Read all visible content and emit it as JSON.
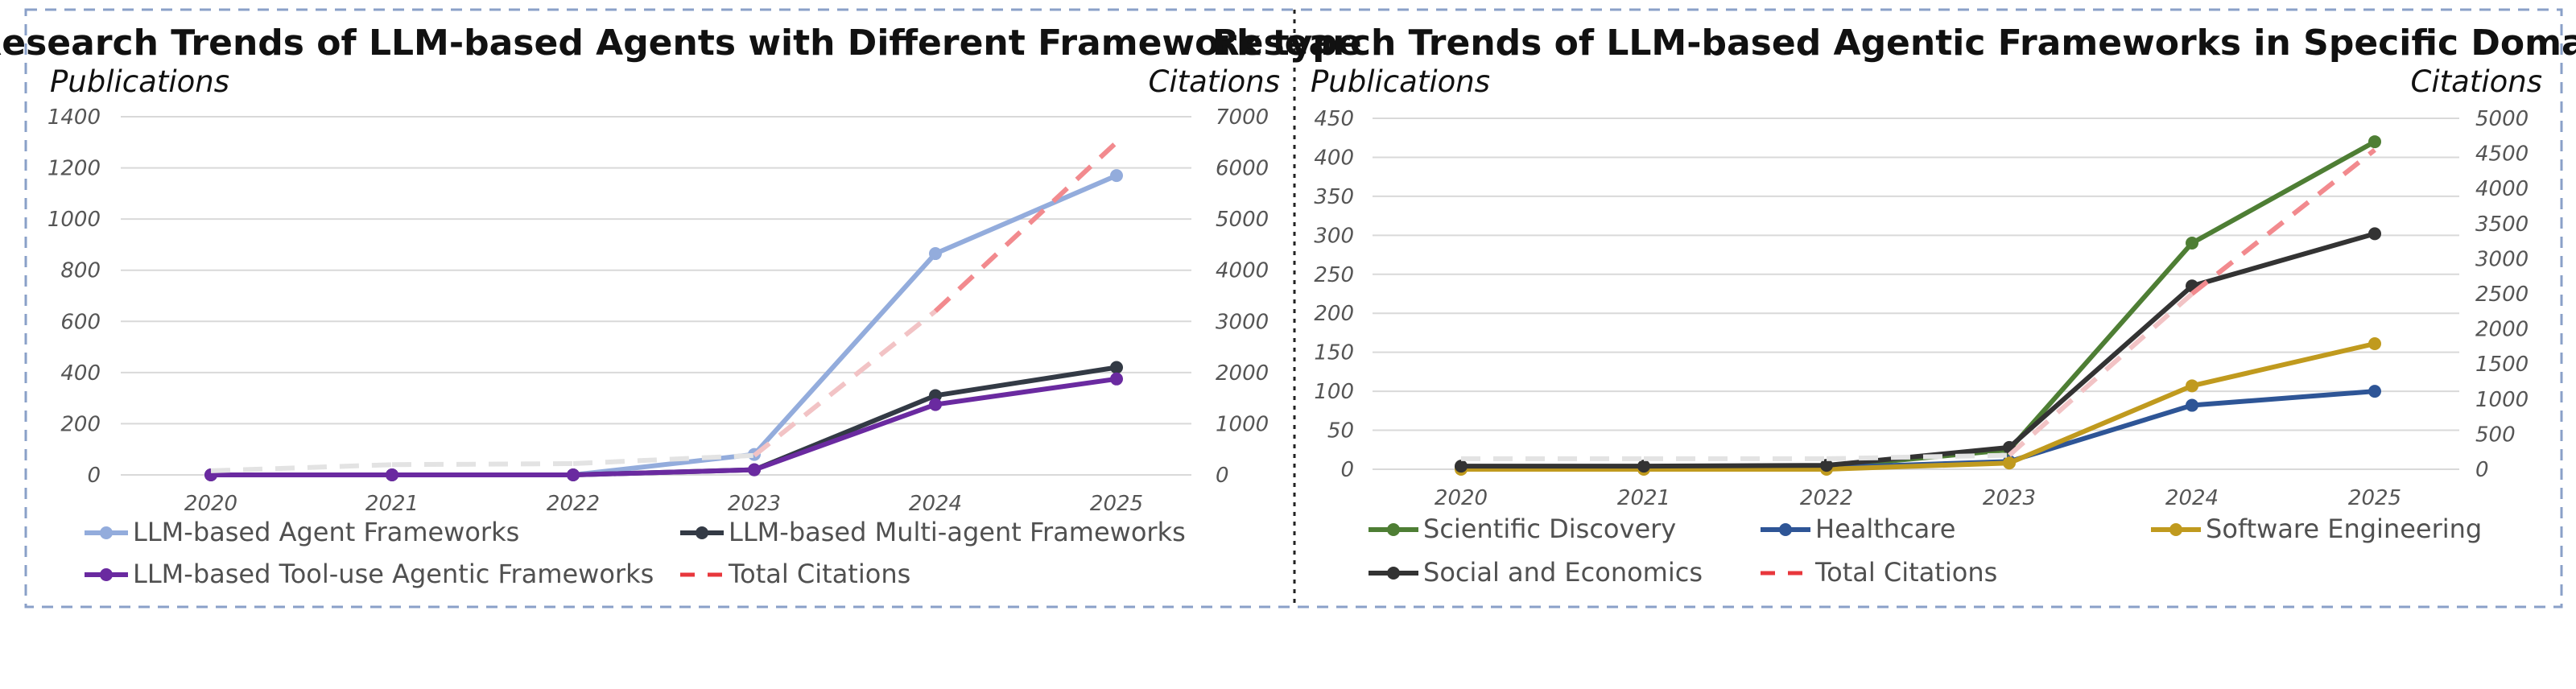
{
  "chart_data": [
    {
      "type": "line",
      "title": "Research Trends of LLM-based Agents with Different Framework type",
      "ylabel": "Publications",
      "y2label": "Citations",
      "categories": [
        "2020",
        "2021",
        "2022",
        "2023",
        "2024",
        "2025"
      ],
      "ylim": [
        0,
        1400
      ],
      "yticks": [
        0,
        200,
        400,
        600,
        800,
        1000,
        1200,
        1400
      ],
      "y2lim": [
        0,
        7000
      ],
      "y2ticks": [
        0,
        1000,
        2000,
        3000,
        4000,
        5000,
        6000,
        7000
      ],
      "grid": true,
      "legend_position": "bottom",
      "series": [
        {
          "name": "LLM-based Agent Frameworks",
          "values": [
            0,
            0,
            0,
            80,
            865,
            1170
          ],
          "color": "#93acdc",
          "axis": "left",
          "style": "solid"
        },
        {
          "name": "LLM-based Multi-agent Frameworks",
          "values": [
            0,
            0,
            0,
            20,
            310,
            420
          ],
          "color": "#333a45",
          "axis": "left",
          "style": "solid"
        },
        {
          "name": "LLM-based Tool-use Agentic Frameworks",
          "values": [
            0,
            0,
            0,
            20,
            275,
            375
          ],
          "color": "#6a2aa0",
          "axis": "left",
          "style": "solid"
        },
        {
          "name": "Total Citations",
          "values": [
            80,
            200,
            220,
            380,
            3200,
            6500
          ],
          "color": "#e8373c",
          "axis": "right",
          "style": "dashed"
        }
      ]
    },
    {
      "type": "line",
      "title": "Research Trends of LLM-based Agentic Frameworks in Specific Domains",
      "ylabel": "Publications",
      "y2label": "Citations",
      "categories": [
        "2020",
        "2021",
        "2022",
        "2023",
        "2024",
        "2025"
      ],
      "ylim": [
        0,
        450
      ],
      "yticks": [
        0,
        50,
        100,
        150,
        200,
        250,
        300,
        350,
        400,
        450
      ],
      "y2lim": [
        0,
        5000
      ],
      "y2ticks": [
        0,
        500,
        1000,
        1500,
        2000,
        2500,
        3000,
        3500,
        4000,
        4500,
        5000
      ],
      "grid": true,
      "legend_position": "bottom",
      "series": [
        {
          "name": "Scientific Discovery",
          "values": [
            2,
            2,
            3,
            25,
            290,
            420
          ],
          "color": "#4e7e34",
          "axis": "left",
          "style": "solid"
        },
        {
          "name": "Healthcare",
          "values": [
            2,
            2,
            2,
            10,
            82,
            100
          ],
          "color": "#2e5596",
          "axis": "left",
          "style": "solid"
        },
        {
          "name": "Software Engineering",
          "values": [
            0,
            0,
            0,
            8,
            107,
            161
          ],
          "color": "#c09a1e",
          "axis": "left",
          "style": "solid"
        },
        {
          "name": "Social and Economics",
          "values": [
            4,
            4,
            5,
            28,
            235,
            302
          ],
          "color": "#333333",
          "axis": "left",
          "style": "solid"
        },
        {
          "name": "Total Citations",
          "values": [
            150,
            150,
            150,
            200,
            2500,
            4550
          ],
          "color": "#e8373c",
          "axis": "right",
          "style": "dashed"
        }
      ]
    }
  ]
}
